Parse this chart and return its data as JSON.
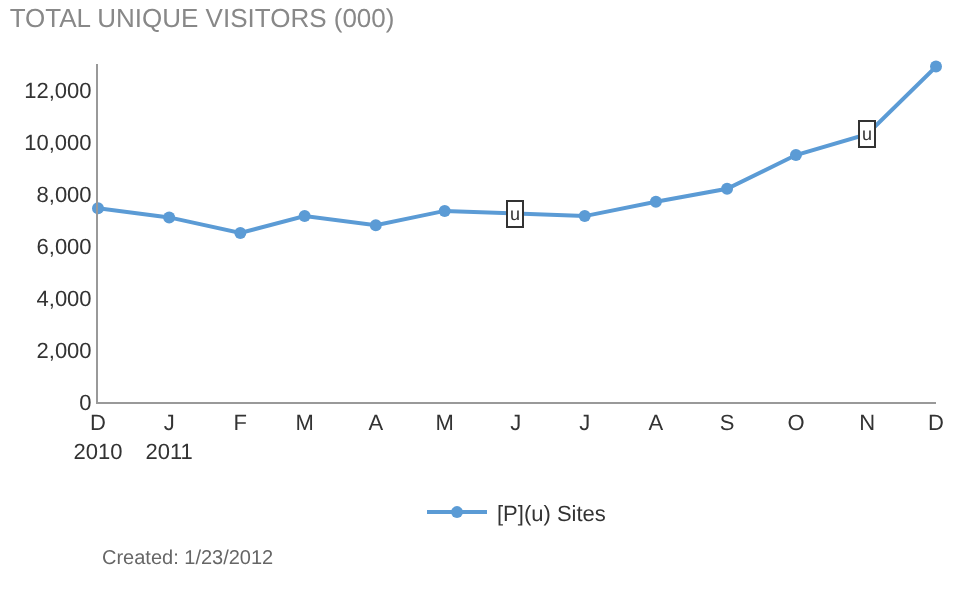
{
  "chart_data": {
    "type": "line",
    "title": "TOTAL UNIQUE VISITORS (000)",
    "x": [
      "2010-12",
      "2011-01",
      "2011-02",
      "2011-03",
      "2011-04",
      "2011-05",
      "2011-06",
      "2011-07",
      "2011-08",
      "2011-09",
      "2011-10",
      "2011-11",
      "2011-12"
    ],
    "series": [
      {
        "name": "[P](u) Sites",
        "color": "#5b9bd5",
        "values": [
          7450,
          7100,
          6500,
          7150,
          6800,
          7350,
          7250,
          7150,
          7700,
          8200,
          9500,
          10300,
          12900
        ]
      }
    ],
    "xlim": [
      "2010-12",
      "2011-12"
    ],
    "xticks": [
      {
        "value": "2010-12",
        "label": "D\n2010"
      },
      {
        "value": "2011-01",
        "label": "J\n2011"
      },
      {
        "value": "2011-02",
        "label": "F"
      },
      {
        "value": "2011-03",
        "label": "M"
      },
      {
        "value": "2011-04",
        "label": "A"
      },
      {
        "value": "2011-05",
        "label": "M"
      },
      {
        "value": "2011-06",
        "label": "J"
      },
      {
        "value": "2011-07",
        "label": "J"
      },
      {
        "value": "2011-08",
        "label": "A"
      },
      {
        "value": "2011-09",
        "label": "S"
      },
      {
        "value": "2011-10",
        "label": "O"
      },
      {
        "value": "2011-11",
        "label": "N"
      },
      {
        "value": "2011-12",
        "label": "D"
      }
    ],
    "ylim": [
      0,
      13000
    ],
    "yticks": [
      {
        "value": 0,
        "label": "0"
      },
      {
        "value": 2000,
        "label": "2,000"
      },
      {
        "value": 4000,
        "label": "4,000"
      },
      {
        "value": 6000,
        "label": "6,000"
      },
      {
        "value": 8000,
        "label": "8,000"
      },
      {
        "value": 10000,
        "label": "10,000"
      },
      {
        "value": 12000,
        "label": "12,000"
      }
    ],
    "annotations": [
      {
        "text": "u",
        "x": "2011-06",
        "y": 7250
      },
      {
        "text": "u",
        "x": "2011-11",
        "y": 10300
      },
      "Created: 1/23/2012"
    ],
    "grid": false,
    "legend": "bottom",
    "marker": "circle",
    "line_style": "solid"
  }
}
